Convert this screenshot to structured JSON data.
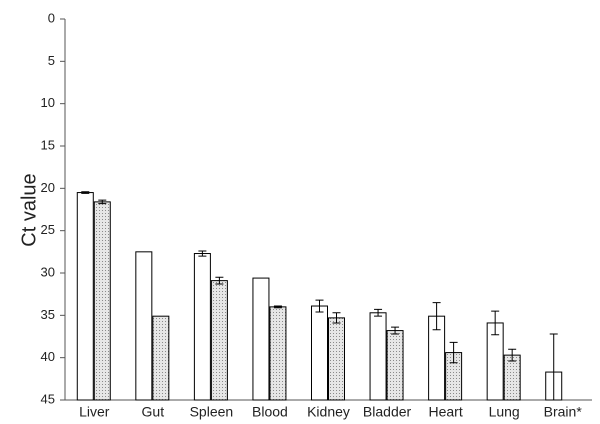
{
  "chart_data": {
    "type": "bar",
    "y_label": "Ct value",
    "categories": [
      "Liver",
      "Gut",
      "Spleen",
      "Blood",
      "Kidney",
      "Bladder",
      "Heart",
      "Lung",
      "Brain*"
    ],
    "series": [
      {
        "color": "#ffffff",
        "values": [
          20.5,
          27.5,
          27.7,
          30.6,
          33.9,
          34.7,
          35.1,
          35.9,
          41.7
        ],
        "errors": [
          0.1,
          null,
          0.3,
          null,
          0.7,
          0.4,
          1.6,
          1.4,
          4.5
        ]
      },
      {
        "color": "#d4d4d4",
        "values": [
          21.6,
          35.1,
          30.9,
          34.0,
          35.3,
          36.8,
          39.4,
          39.7,
          null
        ],
        "errors": [
          0.2,
          null,
          0.4,
          0.1,
          0.6,
          0.4,
          1.2,
          0.7,
          null
        ]
      }
    ],
    "ylim": [
      0,
      45
    ],
    "yticks": [
      0,
      5,
      10,
      15,
      20,
      25,
      30,
      35,
      40,
      45
    ],
    "y_inverted": true,
    "grid": false
  }
}
